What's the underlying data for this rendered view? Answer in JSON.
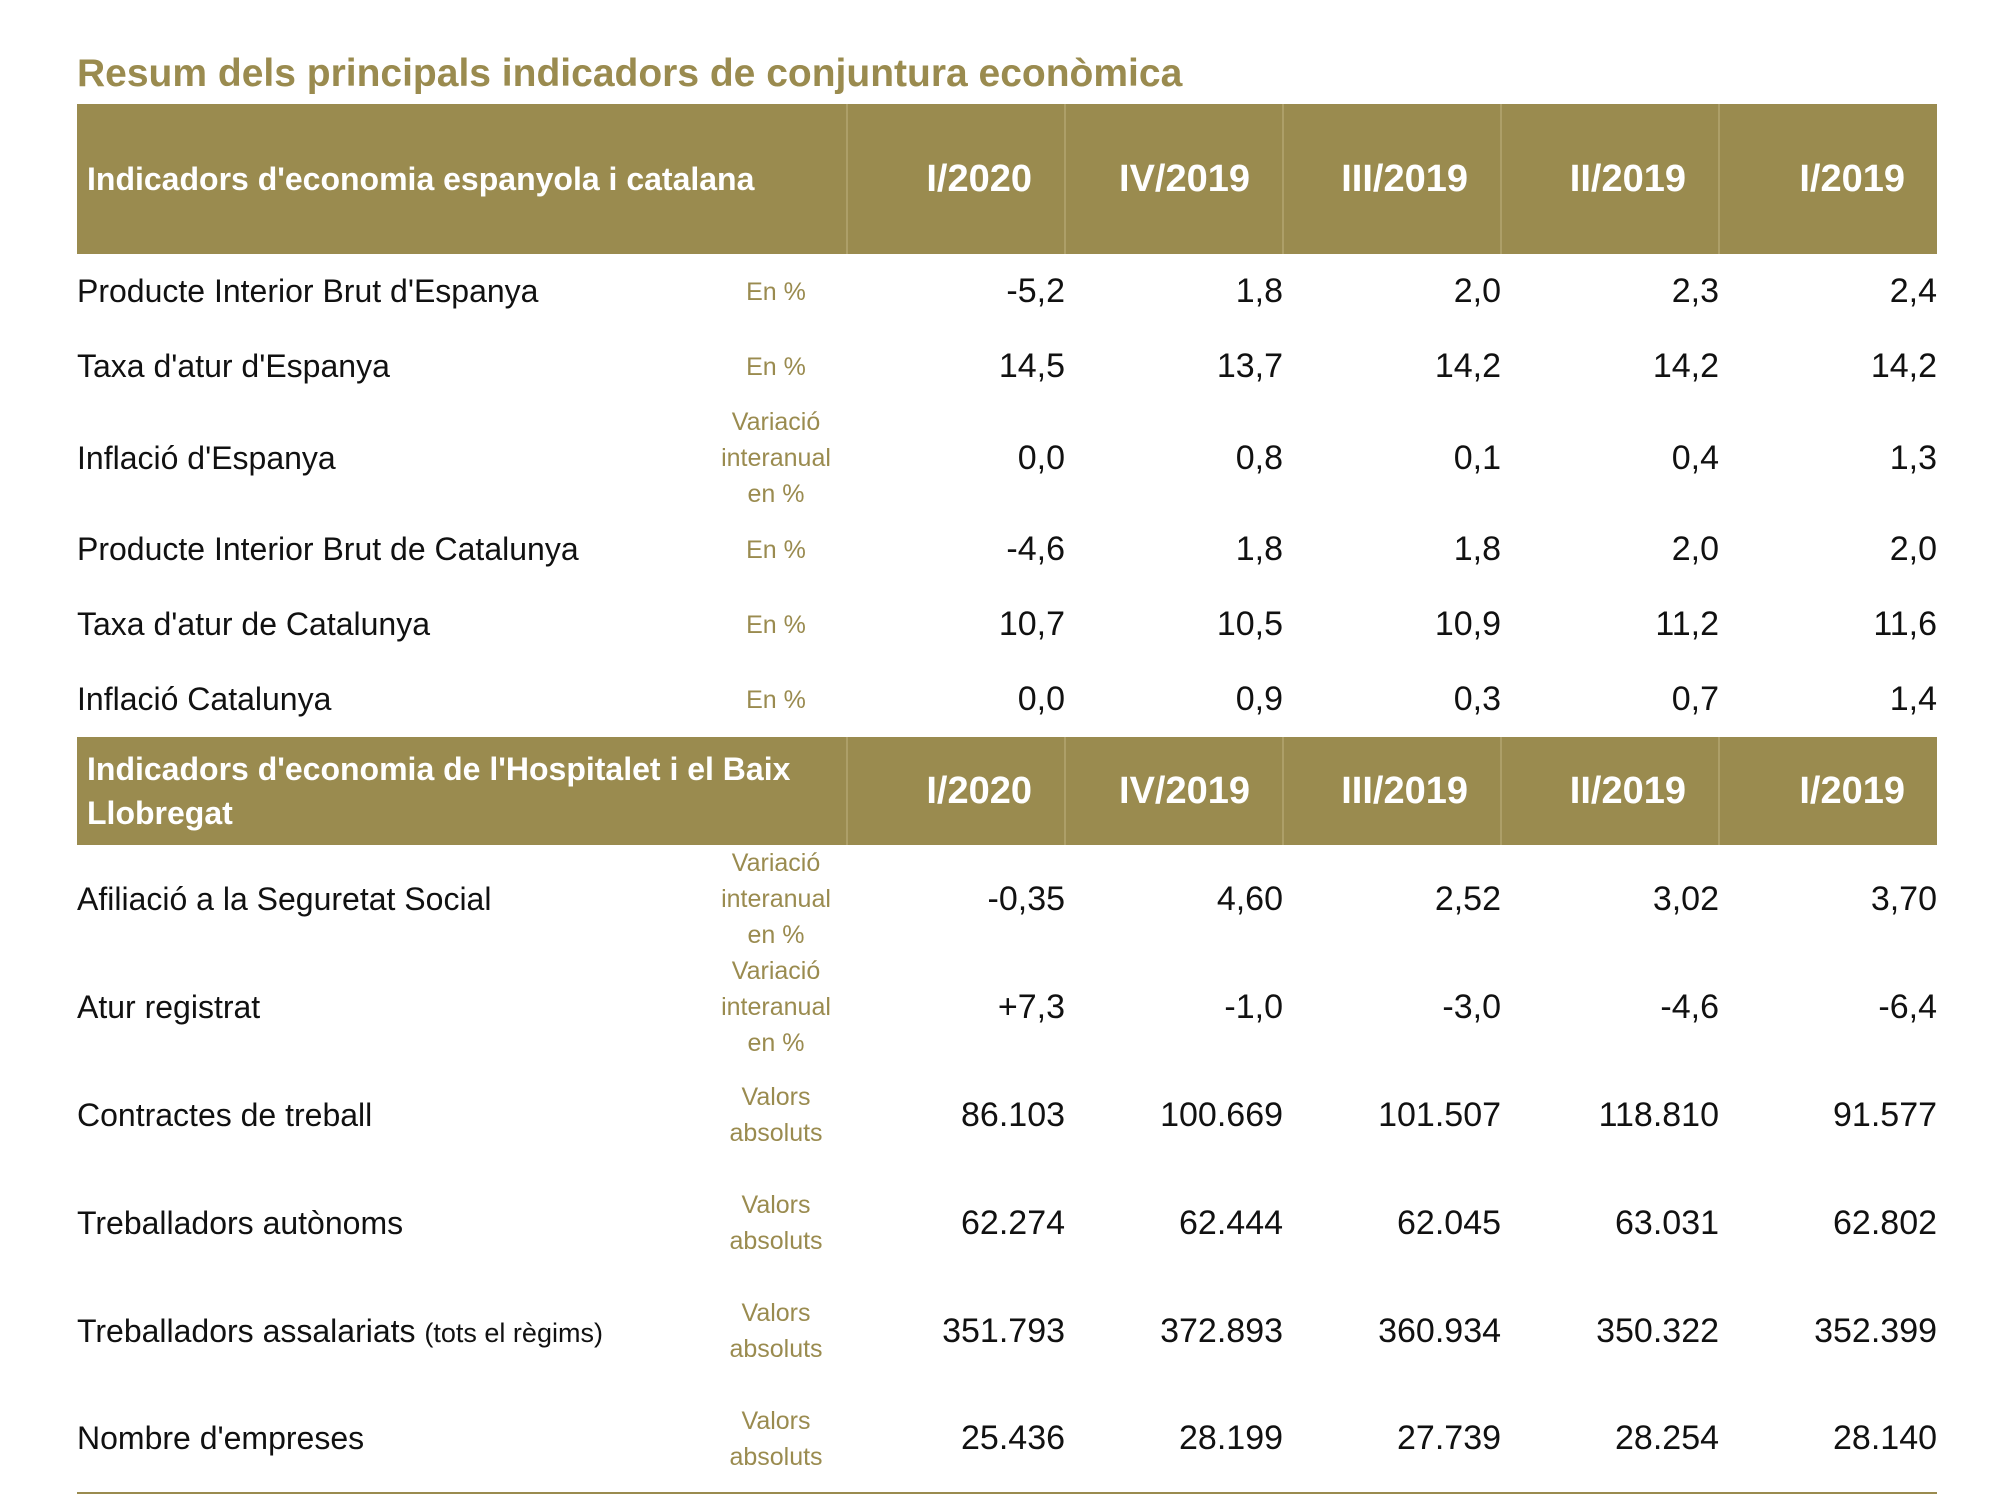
{
  "title": "Resum dels principals indicadors de conjuntura econòmica",
  "periods": [
    "I/2020",
    "IV/2019",
    "III/2019",
    "II/2019",
    "I/2019"
  ],
  "sections": [
    {
      "title": "Indicadors d'economia espanyola i catalana",
      "rows": [
        {
          "label": "Producte Interior Brut d'Espanya",
          "unit": "En %",
          "values": [
            "-5,2",
            "1,8",
            "2,0",
            "2,3",
            "2,4"
          ]
        },
        {
          "label": "Taxa d'atur d'Espanya",
          "unit": "En %",
          "values": [
            "14,5",
            "13,7",
            "14,2",
            "14,2",
            "14,2"
          ]
        },
        {
          "label": "Inflació d'Espanya",
          "unit": "Variació interanual en %",
          "values": [
            "0,0",
            "0,8",
            "0,1",
            "0,4",
            "1,3"
          ]
        },
        {
          "label": "Producte Interior Brut de Catalunya",
          "unit": "En %",
          "values": [
            "-4,6",
            "1,8",
            "1,8",
            "2,0",
            "2,0"
          ]
        },
        {
          "label": "Taxa d'atur de Catalunya",
          "unit": "En %",
          "values": [
            "10,7",
            "10,5",
            "10,9",
            "11,2",
            "11,6"
          ]
        },
        {
          "label": "Inflació Catalunya",
          "unit": "En %",
          "values": [
            "0,0",
            "0,9",
            "0,3",
            "0,7",
            "1,4"
          ]
        }
      ]
    },
    {
      "title": "Indicadors d'economia de l'Hospitalet i el Baix Llobregat",
      "rows": [
        {
          "label": "Afiliació a la Seguretat Social",
          "unit": "Variació interanual en %",
          "values": [
            "-0,35",
            "4,60",
            "2,52",
            "3,02",
            "3,70"
          ]
        },
        {
          "label": "Atur registrat",
          "unit": "Variació interanual en %",
          "values": [
            "+7,3",
            "-1,0",
            "-3,0",
            "-4,6",
            "-6,4"
          ]
        },
        {
          "label": "Contractes de treball",
          "unit": "Valors absoluts",
          "values": [
            "86.103",
            "100.669",
            "101.507",
            "118.810",
            "91.577"
          ]
        },
        {
          "label": "Treballadors autònoms",
          "unit": "Valors absoluts",
          "values": [
            "62.274",
            "62.444",
            "62.045",
            "63.031",
            "62.802"
          ]
        },
        {
          "label": "Treballadors assalariats",
          "label_note": "(tots el règims)",
          "unit": "Valors absoluts",
          "values": [
            "351.793",
            "372.893",
            "360.934",
            "350.322",
            "352.399"
          ]
        },
        {
          "label": "Nombre d'empreses",
          "unit": "Valors absoluts",
          "values": [
            "25.436",
            "28.199",
            "27.739",
            "28.254",
            "28.140"
          ]
        }
      ]
    }
  ],
  "colors": {
    "accent": "#9a8b4f",
    "header_text": "#ffffff"
  }
}
